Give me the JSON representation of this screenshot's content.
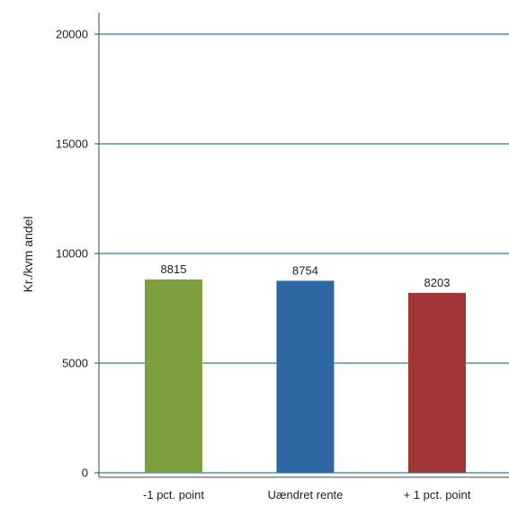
{
  "chart_data": {
    "type": "bar",
    "categories": [
      "-1 pct. point",
      "Uændret rente",
      "+ 1 pct. point"
    ],
    "values": [
      8815,
      8754,
      8203
    ],
    "data_labels": [
      "8815",
      "8754",
      "8203"
    ],
    "colors": [
      "#7e9f3e",
      "#2e67a3",
      "#a23535"
    ],
    "ylabel": "Kr./kvm andel",
    "ylim": [
      0,
      20000
    ],
    "yticks": [
      0,
      5000,
      10000,
      15000,
      20000
    ],
    "ytick_labels": [
      "0",
      "5000",
      "10000",
      "15000",
      "20000"
    ],
    "grid": true,
    "grid_color": "#4a9aa8"
  }
}
